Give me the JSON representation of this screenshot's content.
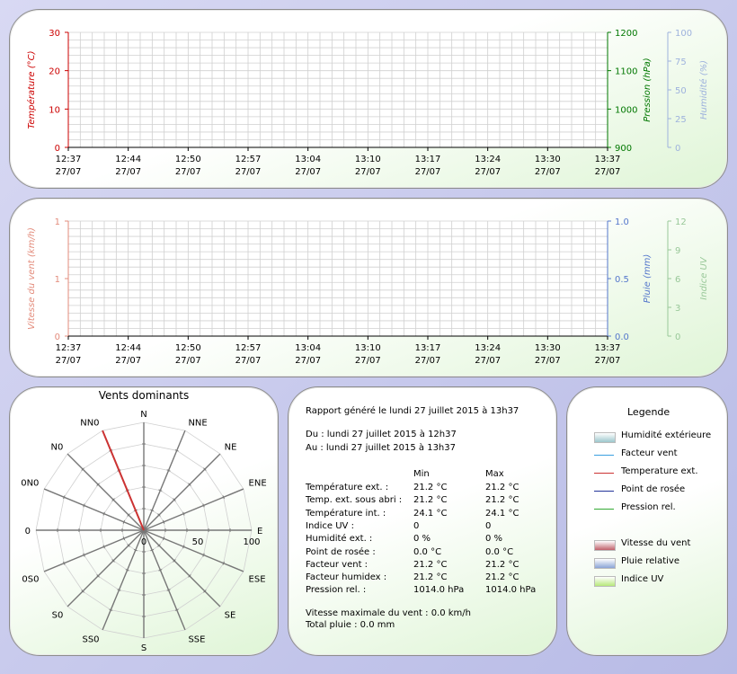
{
  "colors": {
    "temp": "#cc0000",
    "pression": "#007700",
    "humidite": "#9eb2dd",
    "vent": "#e38b7b",
    "pluie": "#5577cc",
    "uv": "#99c899",
    "grid": "#d0d0d0"
  },
  "chart_data": [
    {
      "type": "line",
      "x": [
        "12:37\n27/07",
        "12:44\n27/07",
        "12:50\n27/07",
        "12:57\n27/07",
        "13:04\n27/07",
        "13:10\n27/07",
        "13:17\n27/07",
        "13:24\n27/07",
        "13:30\n27/07",
        "13:37\n27/07"
      ],
      "ylabel": "Température (°C)",
      "ylim": [
        0,
        30
      ],
      "yticks": [
        "0",
        "10",
        "20",
        "30"
      ],
      "y2label": "Pression (hPa)",
      "y2lim": [
        900,
        1200
      ],
      "y2ticks": [
        "900",
        "1000",
        "1100",
        "1200"
      ],
      "y3label": "Humidité (%)",
      "y3lim": [
        0,
        100
      ],
      "y3ticks": [
        "0",
        "25",
        "50",
        "75",
        "100"
      ],
      "series": [],
      "grid": true
    },
    {
      "type": "line",
      "x": [
        "12:37\n27/07",
        "12:44\n27/07",
        "12:50\n27/07",
        "12:57\n27/07",
        "13:04\n27/07",
        "13:10\n27/07",
        "13:17\n27/07",
        "13:24\n27/07",
        "13:30\n27/07",
        "13:37\n27/07"
      ],
      "ylabel": "Vitesse du vent (km/h)",
      "ylim": [
        0,
        1
      ],
      "yticks": [
        "0",
        "1",
        "1"
      ],
      "y2label": "Pluie (mm)",
      "y2lim": [
        0,
        1
      ],
      "y2ticks": [
        "0.0",
        "0.5",
        "1.0"
      ],
      "y3label": "Indice UV",
      "y3lim": [
        0,
        12
      ],
      "y3ticks": [
        "0",
        "3",
        "6",
        "9",
        "12"
      ],
      "series": [],
      "grid": true
    },
    {
      "type": "radar",
      "title": "Vents dominants",
      "directions": [
        "N",
        "NNE",
        "NE",
        "ENE",
        "E",
        "ESE",
        "SE",
        "SSE",
        "S",
        "SS0",
        "S0",
        "0S0",
        "0",
        "0N0",
        "N0",
        "NN0"
      ],
      "radial_ticks": [
        "0",
        "50",
        "100"
      ],
      "rlim": [
        0,
        100
      ],
      "series": [
        {
          "direction": "NN0",
          "value": 100
        }
      ]
    }
  ],
  "report": {
    "generated": "Rapport généré le lundi 27 juillet 2015 à 13h37",
    "from": "Du : lundi 27 juillet 2015 à 12h37",
    "to": "Au : lundi 27 juillet 2015 à 13h37",
    "min_header": "Min",
    "max_header": "Max",
    "rows": [
      {
        "label": "Température ext. :",
        "min": "21.2 °C",
        "max": "21.2 °C"
      },
      {
        "label": "Temp. ext. sous abri :",
        "min": "21.2 °C",
        "max": "21.2 °C"
      },
      {
        "label": "Température int. :",
        "min": "24.1 °C",
        "max": "24.1 °C"
      },
      {
        "label": "Indice UV :",
        "min": "0",
        "max": "0"
      },
      {
        "label": "Humidité ext. :",
        "min": "0 %",
        "max": "0 %"
      },
      {
        "label": "Point de rosée :",
        "min": "0.0 °C",
        "max": "0.0 °C"
      },
      {
        "label": "Facteur vent :",
        "min": "21.2 °C",
        "max": "21.2 °C"
      },
      {
        "label": "Facteur humidex :",
        "min": "21.2 °C",
        "max": "21.2 °C"
      },
      {
        "label": "Pression rel. :",
        "min": "1014.0 hPa",
        "max": "1014.0 hPa"
      }
    ],
    "wind_max": "Vitesse maximale du vent : 0.0 km/h",
    "rain_total": "Total pluie : 0.0 mm"
  },
  "legend": {
    "title": "Legende",
    "items": [
      {
        "label": "Humidité extérieure",
        "kind": "area",
        "color": "#9cc7cc"
      },
      {
        "label": "Facteur vent",
        "kind": "line",
        "color": "#3aa0e0"
      },
      {
        "label": "Temperature ext.",
        "kind": "line",
        "color": "#cc3333"
      },
      {
        "label": "Point de rosée",
        "kind": "line",
        "color": "#223399"
      },
      {
        "label": "Pression rel.",
        "kind": "line",
        "color": "#33aa33"
      },
      {
        "label": "Vitesse du vent",
        "kind": "area",
        "color": "#c0606a"
      },
      {
        "label": "Pluie relative",
        "kind": "area",
        "color": "#8aa4d6"
      },
      {
        "label": "Indice UV",
        "kind": "area",
        "color": "#b6e87a"
      }
    ]
  }
}
